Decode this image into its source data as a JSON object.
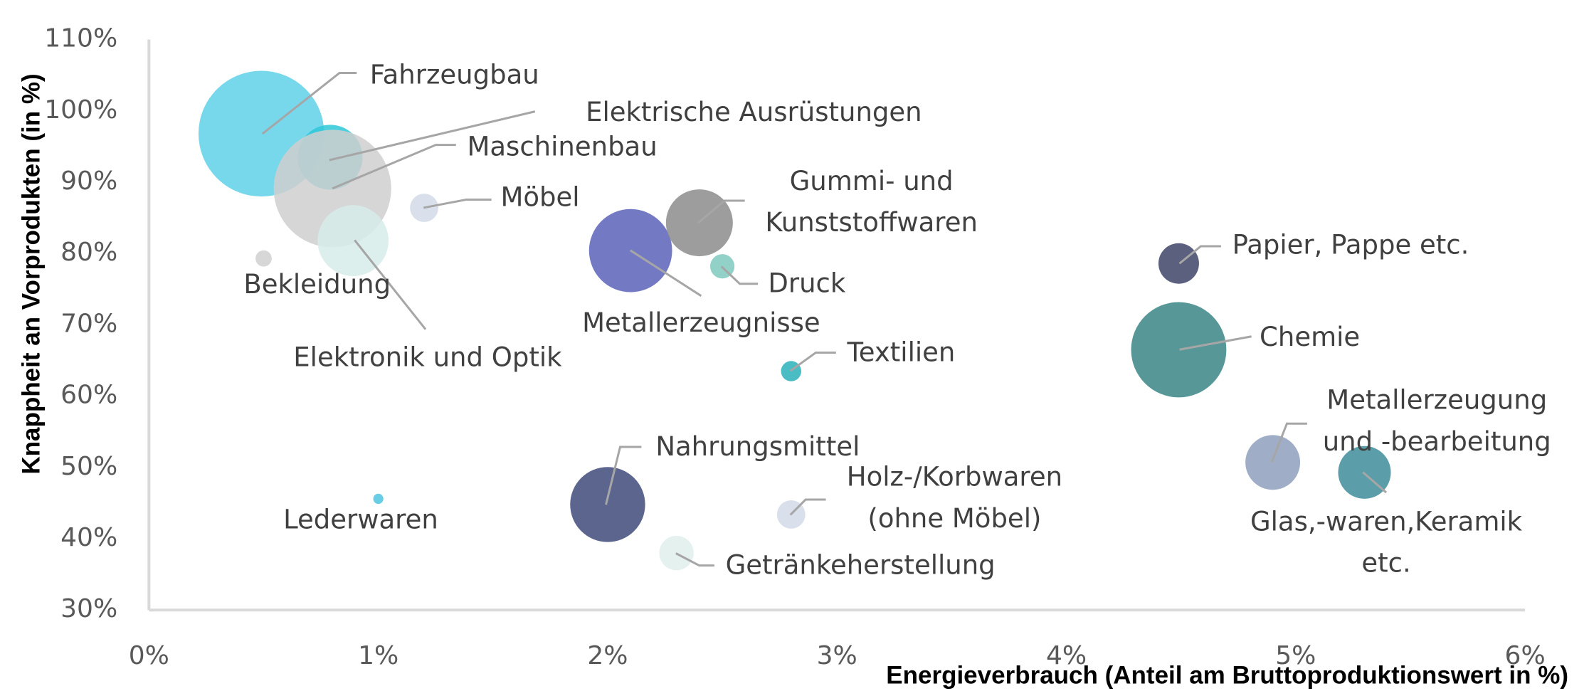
{
  "chart_data": {
    "type": "scatter",
    "x_label": "Energieverbrauch (Anteil am Bruttoproduktionswert in %)",
    "y_label": "Knappheit an Vorprodukten (in %)",
    "xlim": [
      0,
      6
    ],
    "ylim": [
      30,
      110
    ],
    "xticks": [
      {
        "value": 0,
        "label": "0%"
      },
      {
        "value": 1,
        "label": "1%"
      },
      {
        "value": 2,
        "label": "2%"
      },
      {
        "value": 3,
        "label": "3%"
      },
      {
        "value": 4,
        "label": "4%"
      },
      {
        "value": 5,
        "label": "5%"
      },
      {
        "value": 6,
        "label": "6%"
      }
    ],
    "yticks": [
      {
        "value": 30,
        "label": "30%"
      },
      {
        "value": 40,
        "label": "40%"
      },
      {
        "value": 50,
        "label": "50%"
      },
      {
        "value": 60,
        "label": "60%"
      },
      {
        "value": 70,
        "label": "70%"
      },
      {
        "value": 80,
        "label": "80%"
      },
      {
        "value": 90,
        "label": "90%"
      },
      {
        "value": 100,
        "label": "100%"
      },
      {
        "value": 110,
        "label": "110%"
      }
    ],
    "categories": [
      "Fahrzeugbau",
      "Elektrische Ausrüstungen",
      "Maschinenbau",
      "Elektronik und Optik",
      "Möbel",
      "Bekleidung",
      "Metallerzeugnisse",
      [
        "Gummi- und",
        "Kunststoffwaren"
      ],
      "Druck",
      "Textilien",
      "Papier, Pappe etc.",
      "Chemie",
      [
        "Metallerzeugung",
        "und -bearbeitung"
      ],
      [
        "Glas,-waren,Keramik",
        "etc."
      ],
      "Nahrungsmittel",
      [
        "Holz-/Korbwaren",
        "(ohne Möbel)"
      ],
      "Getränkeherstellung",
      "Lederwaren"
    ],
    "x": [
      0.49,
      0.79,
      0.8,
      0.89,
      1.2,
      0.5,
      2.1,
      2.4,
      2.5,
      2.8,
      4.49,
      4.49,
      4.9,
      5.3,
      2.0,
      2.8,
      2.3,
      1.0
    ],
    "values": [
      96.8,
      93.5,
      89.1,
      81.8,
      86.4,
      79.3,
      80.4,
      84.3,
      78.2,
      63.5,
      78.6,
      66.5,
      50.7,
      49.3,
      44.8,
      43.4,
      38.0,
      45.6
    ],
    "sizes": [
      62,
      32,
      58,
      35,
      14,
      8,
      41,
      33,
      12,
      10,
      20,
      47,
      27,
      26,
      37,
      14,
      17,
      5
    ],
    "colors": [
      "#5fd0e8",
      "#2ec8d8",
      "#cfcfcf",
      "#d6ecea",
      "#d4dbe8",
      "#d0d0d0",
      "#5a63b8",
      "#8c8c8c",
      "#7ec9bd",
      "#2ab0b8",
      "#3d4466",
      "#3a8585",
      "#8e9fbd",
      "#3e8c9a",
      "#3e4a7a",
      "#d4dbe8",
      "#e0eeec",
      "#4cc6e0"
    ]
  }
}
